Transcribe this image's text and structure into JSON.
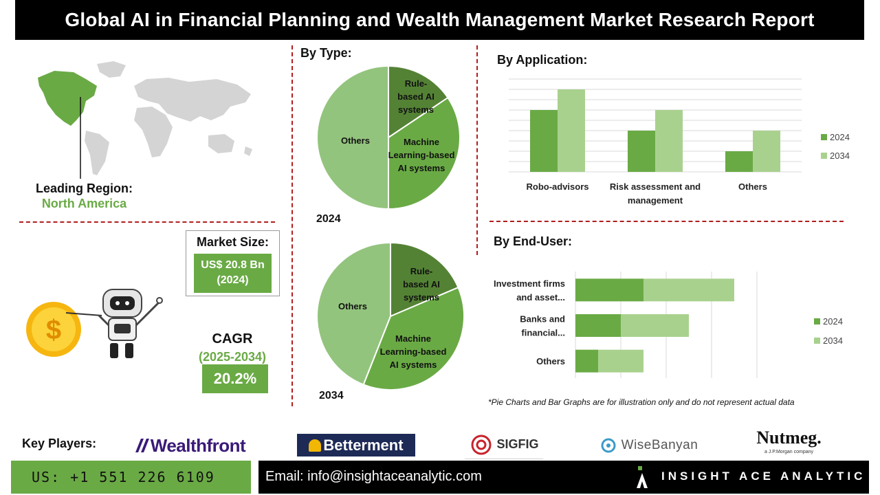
{
  "header": {
    "title": "Global AI in Financial Planning and Wealth Management Market Research Report"
  },
  "region": {
    "label": "Leading Region:",
    "value": "North America"
  },
  "market_size": {
    "label": "Market Size:",
    "value_line1": "US$ 20.8 Bn",
    "value_line2": "(2024)"
  },
  "cagr": {
    "label": "CAGR",
    "period": "(2025-2034)",
    "value": "20.2%"
  },
  "by_type": {
    "heading": "By Type:",
    "charts": [
      {
        "year": "2024",
        "slices": [
          {
            "name_lines": [
              "Rule-",
              "based AI",
              "systems"
            ],
            "share": 15.6,
            "color": "#548235"
          },
          {
            "name_lines": [
              "Machine",
              "Learning-based",
              "AI systems"
            ],
            "share": 34.4,
            "color": "#6aaa45"
          },
          {
            "name_lines": [
              "Others"
            ],
            "share": 50,
            "color": "#93c47d"
          }
        ]
      },
      {
        "year": "2034",
        "slices": [
          {
            "name_lines": [
              "Rule-",
              "based AI",
              "systems"
            ],
            "share": 18.6,
            "color": "#548235"
          },
          {
            "name_lines": [
              "Machine",
              "Learning-based",
              "AI systems"
            ],
            "share": 37.4,
            "color": "#6aaa45"
          },
          {
            "name_lines": [
              "Others"
            ],
            "share": 44,
            "color": "#93c47d"
          }
        ]
      }
    ]
  },
  "by_application": {
    "heading": "By  Application:",
    "legend": [
      "2024",
      "2034"
    ]
  },
  "by_end_user": {
    "heading": "By End-User:",
    "legend": [
      "2024",
      "2034"
    ]
  },
  "chart_data": [
    {
      "type": "bar",
      "title": "By  Application:",
      "categories": [
        [
          "Robo-advisors"
        ],
        [
          "Risk assessment and",
          "management"
        ],
        [
          "Others"
        ]
      ],
      "series": [
        {
          "name": "2024",
          "values": [
            3,
            2,
            1
          ],
          "color": "#6aaa45"
        },
        {
          "name": "2034",
          "values": [
            4,
            3,
            2
          ],
          "color": "#a9d18e"
        }
      ],
      "ylim": [
        0,
        4.5
      ],
      "grid": true,
      "legend": "right"
    },
    {
      "type": "bar",
      "orientation": "horizontal",
      "stacked": true,
      "title": "By End-User:",
      "categories": [
        [
          "Investment firms",
          "and asset..."
        ],
        [
          "Banks and",
          "financial..."
        ],
        [
          "Others"
        ]
      ],
      "series": [
        {
          "name": "2024",
          "values": [
            1.5,
            1.0,
            0.5
          ],
          "color": "#6aaa45"
        },
        {
          "name": "2034",
          "values": [
            2.0,
            1.5,
            1.0
          ],
          "color": "#a9d18e"
        }
      ],
      "xlim": [
        0,
        4.0
      ],
      "grid": true,
      "legend": "right"
    }
  ],
  "footnote": "*Pie Charts and Bar Graphs are for illustration only and do not represent actual data",
  "key_players": {
    "label": "Key Players:",
    "logos": [
      "Wealthfront",
      "Betterment",
      "SIGFIG",
      "WiseBanyan",
      "Nutmeg.",
      "a J.P.Morgan company"
    ]
  },
  "footer": {
    "phone": "US: +1 551 226 6109",
    "email": "Email: info@insightaceanalytic.com",
    "brand": "INSIGHT ACE ANALYTIC"
  },
  "colors": {
    "accent": "#6aaa45",
    "accent_light": "#a9d18e",
    "dark_green": "#548235",
    "divider": "#b01c1c"
  }
}
